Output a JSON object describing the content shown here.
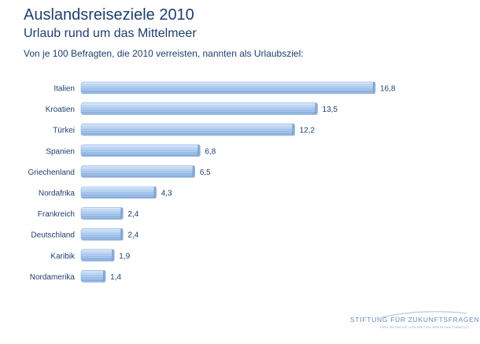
{
  "header": {
    "title": "Auslandsreiseziele 2010",
    "subtitle": "Urlaub rund um das Mittelmeer",
    "note": "Von je 100 Befragten, die 2010 verreisten, nannten als Urlaubsziel:"
  },
  "logo": {
    "text": "STIFTUNG FÜR ZUKUNFTSFRAGEN",
    "subtext": "EINE INITIATIVE VON BRITISH AMERICAN TOBACCO"
  },
  "chart_data": {
    "type": "bar",
    "orientation": "horizontal",
    "categories": [
      "Italien",
      "Kroatien",
      "Türkei",
      "Spanien",
      "Griechenland",
      "Nordafrika",
      "Frankreich",
      "Deutschland",
      "Karibik",
      "Nordamerika"
    ],
    "values": [
      16.8,
      13.5,
      12.2,
      6.8,
      6.5,
      4.3,
      2.4,
      2.4,
      1.9,
      1.4
    ],
    "value_labels": [
      "16,8",
      "13,5",
      "12,2",
      "6,8",
      "6,5",
      "4,3",
      "2,4",
      "2,4",
      "1,9",
      "1,4"
    ],
    "xlim": [
      0,
      16.8
    ],
    "grid": false,
    "legend": "none",
    "bar_color": "#a9c8ee"
  }
}
